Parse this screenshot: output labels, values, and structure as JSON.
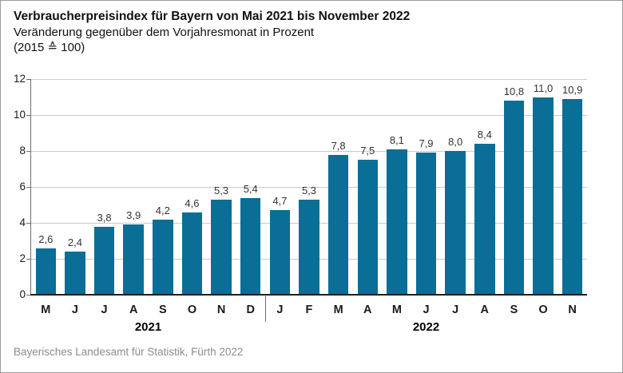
{
  "header": {
    "title": "Verbraucherpreisindex für Bayern von Mai 2021 bis November 2022",
    "subtitle": "Veränderung gegenüber dem Vorjahresmonat in Prozent",
    "base_note": "(2015 ≙ 100)"
  },
  "footer": {
    "source": "Bayerisches Landesamt für Statistik, Fürth 2022"
  },
  "chart_data": {
    "type": "bar",
    "title": "Verbraucherpreisindex für Bayern von Mai 2021 bis November 2022",
    "subtitle": "Veränderung gegenüber dem Vorjahresmonat in Prozent",
    "base_note": "(2015 ≙ 100)",
    "categories": [
      "M",
      "J",
      "J",
      "A",
      "S",
      "O",
      "N",
      "D",
      "J",
      "F",
      "M",
      "A",
      "M",
      "J",
      "J",
      "A",
      "S",
      "O",
      "N"
    ],
    "values": [
      2.6,
      2.4,
      3.8,
      3.9,
      4.2,
      4.6,
      5.3,
      5.4,
      4.7,
      5.3,
      7.8,
      7.5,
      8.1,
      7.9,
      8.0,
      8.4,
      10.8,
      11.0,
      10.9
    ],
    "value_labels": [
      "2,6",
      "2,4",
      "3,8",
      "3,9",
      "4,2",
      "4,6",
      "5,3",
      "5,4",
      "4,7",
      "5,3",
      "7,8",
      "7,5",
      "8,1",
      "7,9",
      "8,0",
      "8,4",
      "10,8",
      "11,0",
      "10,9"
    ],
    "year_groups": [
      {
        "label": "2021",
        "start_index": 0,
        "end_index": 7
      },
      {
        "label": "2022",
        "start_index": 8,
        "end_index": 18
      }
    ],
    "xlabel": "",
    "ylabel": "",
    "ylim": [
      0,
      12
    ],
    "yticks": [
      0,
      2,
      4,
      6,
      8,
      10,
      12
    ],
    "grid": true,
    "legend": "none",
    "source": "Bayerisches Landesamt für Statistik, Fürth 2022",
    "colors": {
      "bar": "#0a6e96",
      "gridline": "#c9c9c9",
      "axis": "#6e6e6e",
      "baseline": "#1f1f1f",
      "text": "#1a1a1a",
      "value_label": "#333333",
      "source_text": "#8c8c8c",
      "border": "#9b9b9b"
    }
  }
}
